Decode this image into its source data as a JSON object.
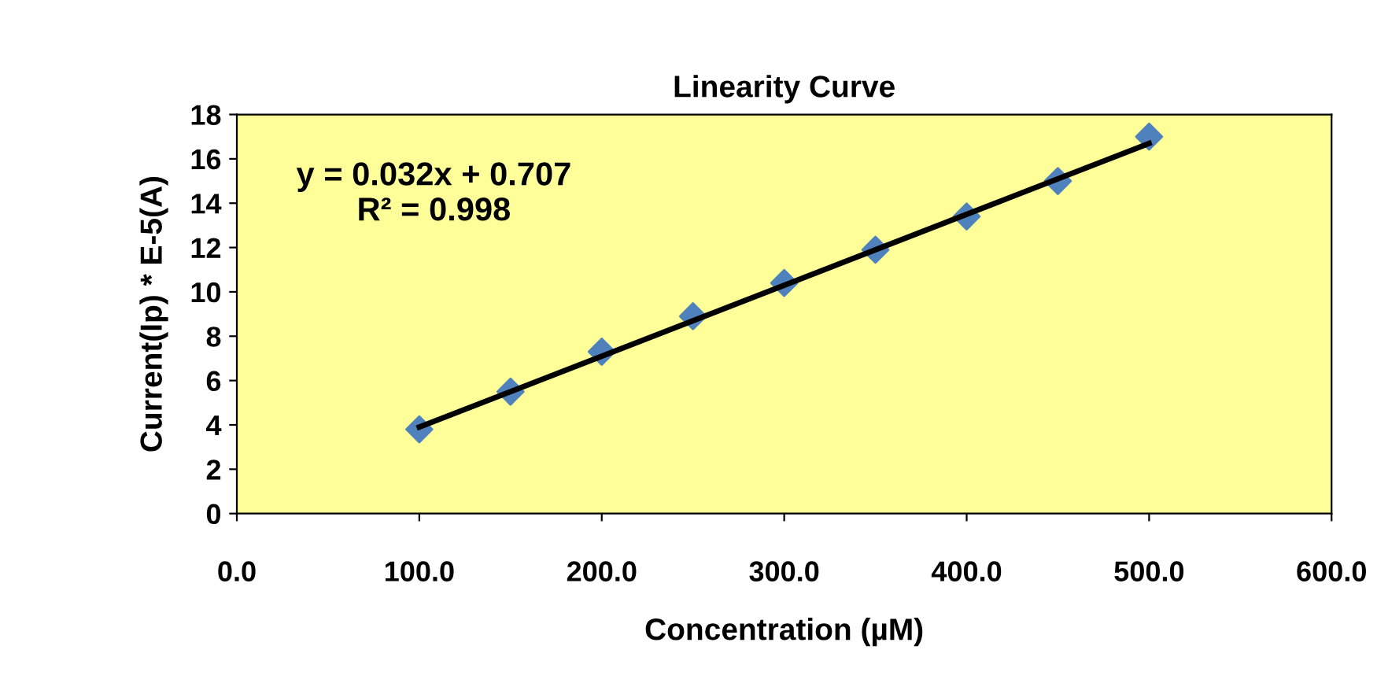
{
  "chart_data": {
    "type": "scatter",
    "title": "Linearity Curve",
    "xlabel": "Concentration (µM)",
    "ylabel": "Current(Ip) * E-5(A)",
    "x": [
      100,
      150,
      200,
      250,
      300,
      350,
      400,
      450,
      500
    ],
    "series": [
      {
        "color": "#4f81bd",
        "marker": "diamond",
        "values": [
          3.8,
          5.5,
          7.3,
          8.9,
          10.4,
          11.9,
          13.4,
          15.0,
          17.0
        ]
      },
      {
        "type": "line",
        "color": "#000000",
        "marker": "none",
        "line_style": "solid",
        "x": [
          100,
          500
        ],
        "values": [
          3.9,
          16.7
        ]
      }
    ],
    "annotations": [
      "y = 0.032x + 0.707\nR² = 0.998"
    ],
    "xlim": [
      0,
      600
    ],
    "ylim": [
      0,
      18
    ],
    "xticks": [
      {
        "value": 0,
        "label": "0.0"
      },
      {
        "value": 100,
        "label": "100.0"
      },
      {
        "value": 200,
        "label": "200.0"
      },
      {
        "value": 300,
        "label": "300.0"
      },
      {
        "value": 400,
        "label": "400.0"
      },
      {
        "value": 500,
        "label": "500.0"
      },
      {
        "value": 600,
        "label": "600.0"
      }
    ],
    "yticks": [
      0,
      2,
      4,
      6,
      8,
      10,
      12,
      14,
      16,
      18
    ],
    "grid": false,
    "legend": false
  }
}
